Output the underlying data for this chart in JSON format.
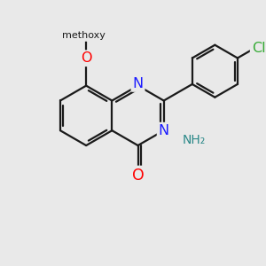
{
  "background_color": "#e9e9e9",
  "bond_color": "#1a1a1a",
  "bond_width": 1.6,
  "atom_colors": {
    "N": "#1a1aff",
    "O": "#ff0000",
    "Cl": "#33aa33",
    "NH2": "#2a8888",
    "C": "#1a1a1a"
  },
  "font_size_main": 11.5,
  "font_size_small": 10.0,
  "fig_size": [
    3.0,
    3.0
  ],
  "dpi": 100
}
